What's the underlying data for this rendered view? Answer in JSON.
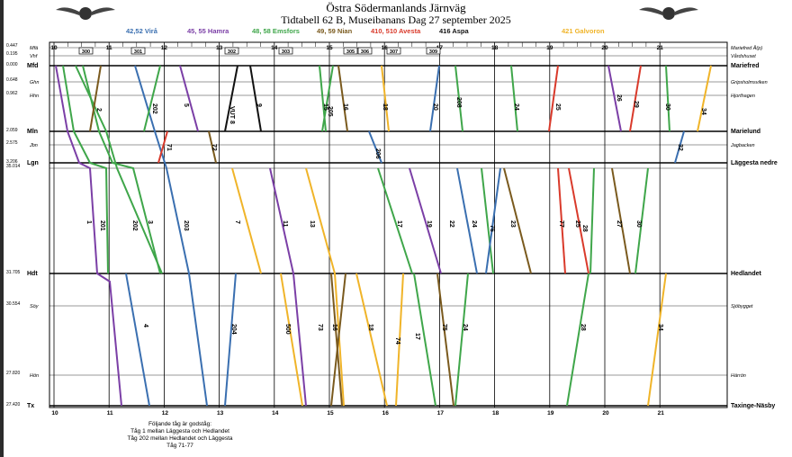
{
  "title": "Östra Södermanlands Järnväg",
  "subtitle": "Tidtabell 62 B, Museibanans Dag 27 september 2025",
  "legend": [
    {
      "text": "42,52 Virå",
      "color": "#3a6fb0"
    },
    {
      "text": "45, 55 Hamra",
      "color": "#7b3fa6"
    },
    {
      "text": "48, 58 Emsfors",
      "color": "#3fa64a"
    },
    {
      "text": "49, 59 Nian",
      "color": "#7a5a1e"
    },
    {
      "text": "410, 510 Avesta",
      "color": "#d93a2b"
    },
    {
      "text": "416 Aspa",
      "color": "#111111"
    },
    {
      "text": "421 Galvoron",
      "color": "#f0b429"
    }
  ],
  "hours": [
    "10",
    "11",
    "12",
    "13",
    "14",
    "15",
    "16",
    "17",
    "18",
    "19",
    "20",
    "21"
  ],
  "stations": [
    {
      "km": "0.447",
      "abbr": "Mfä",
      "name": "Mariefred Å(p)"
    },
    {
      "km": "0.195",
      "abbr": "Vhf",
      "name": "Vårdshuset"
    },
    {
      "km": "0.000",
      "abbr": "Mfd",
      "name": "Mariefred"
    },
    {
      "km": "0.648",
      "abbr": "Ghn",
      "name": "Gripsholmsviken"
    },
    {
      "km": "0.962",
      "abbr": "Hhn",
      "name": "Hjorthagen"
    },
    {
      "km": "2.059",
      "abbr": "Mln",
      "name": "Marielund"
    },
    {
      "km": "2.575",
      "abbr": "Jbn",
      "name": "Jagbacken"
    },
    {
      "km": "3.206",
      "abbr": "Lgn",
      "name": "Läggesta nedre"
    },
    {
      "km": "35.014",
      "abbr": "",
      "name": ""
    },
    {
      "km": "31.705",
      "abbr": "Hdt",
      "name": "Hedlandet"
    },
    {
      "km": "30.554",
      "abbr": "Söy",
      "name": "Sjöbygget"
    },
    {
      "km": "27.820",
      "abbr": "Hön",
      "name": "Härrön"
    },
    {
      "km": "27.420",
      "abbr": "Tx",
      "name": "Taxinge-Näsby"
    }
  ],
  "trains": [
    {
      "no": "1",
      "color": "#7b3fa6"
    },
    {
      "no": "2",
      "color": "#7a5a1e"
    },
    {
      "no": "3",
      "color": "#3fa64a"
    },
    {
      "no": "4",
      "color": "#3a6fb0"
    },
    {
      "no": "5",
      "color": "#7b3fa6"
    },
    {
      "no": "7",
      "color": "#f0b429"
    },
    {
      "no": "9",
      "color": "#111111"
    },
    {
      "no": "11",
      "color": "#7b3fa6"
    },
    {
      "no": "13",
      "color": "#f0b429"
    },
    {
      "no": "15",
      "color": "#3fa64a"
    },
    {
      "no": "16",
      "color": "#7a5a1e"
    },
    {
      "no": "17",
      "color": "#3fa64a"
    },
    {
      "no": "18",
      "color": "#f0b429"
    },
    {
      "no": "19",
      "color": "#7b3fa6"
    },
    {
      "no": "20",
      "color": "#3a6fb0"
    },
    {
      "no": "22",
      "color": "#3a6fb0"
    },
    {
      "no": "23",
      "color": "#7a5a1e"
    },
    {
      "no": "24",
      "color": "#3fa64a"
    },
    {
      "no": "25",
      "color": "#d93a2b"
    },
    {
      "no": "26",
      "color": "#7b3fa6"
    },
    {
      "no": "27",
      "color": "#7a5a1e"
    },
    {
      "no": "28",
      "color": "#3fa64a"
    },
    {
      "no": "29",
      "color": "#d93a2b"
    },
    {
      "no": "30",
      "color": "#3fa64a"
    },
    {
      "no": "32",
      "color": "#3a6fb0"
    },
    {
      "no": "34",
      "color": "#f0b429"
    },
    {
      "no": "71",
      "color": "#d93a2b"
    },
    {
      "no": "72",
      "color": "#7a5a1e"
    },
    {
      "no": "73",
      "color": "#7a5a1e"
    },
    {
      "no": "74",
      "color": "#f0b429"
    },
    {
      "no": "75",
      "color": "#7a5a1e"
    },
    {
      "no": "76",
      "color": "#3a6fb0"
    },
    {
      "no": "77",
      "color": "#d93a2b"
    },
    {
      "no": "201",
      "color": "#3fa64a"
    },
    {
      "no": "202",
      "color": "#3fa64a"
    },
    {
      "no": "203",
      "color": "#3a6fb0"
    },
    {
      "no": "204",
      "color": "#3a6fb0"
    },
    {
      "no": "205",
      "color": "#3fa64a"
    },
    {
      "no": "206",
      "color": "#3a6fb0"
    },
    {
      "no": "208",
      "color": "#3fa64a"
    },
    {
      "no": "500",
      "color": "#f0b429"
    },
    {
      "no": "VUT 8",
      "color": "#111111"
    }
  ],
  "boxed_trains": [
    "300",
    "301",
    "302",
    "303",
    "305",
    "306",
    "307",
    "309"
  ],
  "footnote": [
    "Följande tåg är godståg:",
    "Tåg 1 mellan Läggesta och Hedlandet",
    "Tåg 202 mellan Hedlandet och Läggesta",
    "Tåg 71-77"
  ]
}
